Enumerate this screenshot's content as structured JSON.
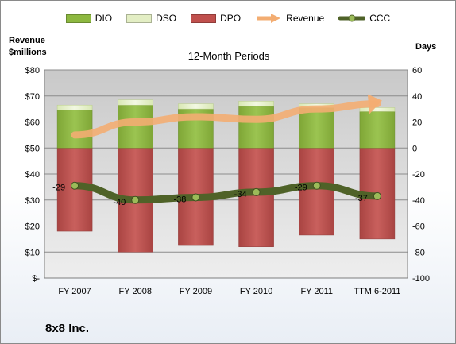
{
  "legend": {
    "dio": "DIO",
    "dso": "DSO",
    "dpo": "DPO",
    "revenue": "Revenue",
    "ccc": "CCC"
  },
  "company": "8x8 Inc.",
  "colors": {
    "dio": "#8db840",
    "dso": "#e3eec4",
    "dpo": "#c0504d",
    "revenue": "#f3ad72",
    "ccc": "#4f6228",
    "ccc_marker": "#9bbb59",
    "plot_bg": "#dcdcdc"
  },
  "chart_data": {
    "type": "bar",
    "title": "12-Month Periods",
    "left_axis_label": "Revenue\n$millions",
    "right_axis_label": "Days",
    "categories": [
      "FY 2007",
      "FY 2008",
      "FY 2009",
      "FY 2010",
      "FY 2011",
      "TTM 6-2011"
    ],
    "left_axis": {
      "min": 0,
      "max": 80,
      "step": 10,
      "tick_labels": [
        "$-",
        "$10",
        "$20",
        "$30",
        "$40",
        "$50",
        "$60",
        "$70",
        "$80"
      ]
    },
    "right_axis": {
      "min": -100,
      "max": 60,
      "step": 20,
      "tick_labels": [
        "-100",
        "-80",
        "-60",
        "-40",
        "-20",
        "0",
        "20",
        "40",
        "60"
      ]
    },
    "grid": true,
    "legend_position": "top",
    "series": [
      {
        "name": "DIO",
        "axis": "right",
        "kind": "stacked-bar",
        "values": [
          29,
          33,
          30,
          32,
          31,
          28
        ]
      },
      {
        "name": "DSO",
        "axis": "right",
        "kind": "stacked-bar",
        "values": [
          4,
          4,
          4,
          4,
          3,
          3
        ]
      },
      {
        "name": "DPO",
        "axis": "right",
        "kind": "negative-bar",
        "values": [
          -64,
          -80,
          -75,
          -76,
          -67,
          -70
        ]
      },
      {
        "name": "Revenue",
        "axis": "left",
        "kind": "arrow-line",
        "values": [
          55,
          60,
          62,
          61,
          65,
          67
        ]
      },
      {
        "name": "CCC",
        "axis": "right",
        "kind": "line",
        "values": [
          -29,
          -40,
          -38,
          -34,
          -29,
          -37
        ],
        "data_labels": [
          "-29",
          "-40",
          "-38",
          "-34",
          "-29",
          "-37"
        ]
      }
    ]
  }
}
